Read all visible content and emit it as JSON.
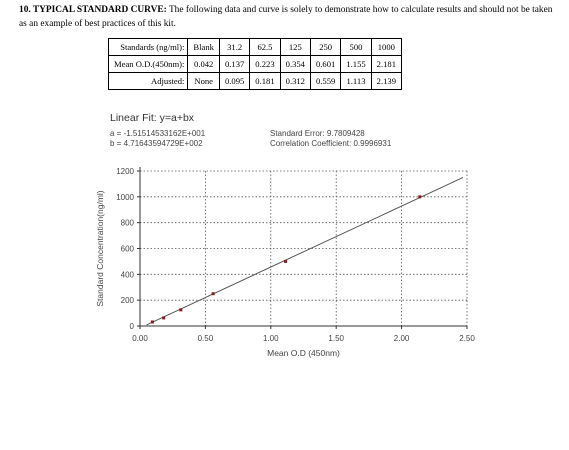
{
  "heading": {
    "bold": "10. TYPICAL STANDARD CURVE:",
    "text": " The following data and curve is solely to demonstrate how to calculate results and should not be taken as an example of best practices of this kit."
  },
  "table": {
    "rows": [
      {
        "label": "Standards (ng/ml):",
        "cells": [
          "Blank",
          "31.2",
          "62.5",
          "125",
          "250",
          "500",
          "1000"
        ]
      },
      {
        "label": "Mean O.D.(450nm):",
        "cells": [
          "0.042",
          "0.137",
          "0.223",
          "0.354",
          "0.601",
          "1.155",
          "2.181"
        ]
      },
      {
        "label": "Adjusted:",
        "cells": [
          "None",
          "0.095",
          "0.181",
          "0.312",
          "0.559",
          "1.113",
          "2.139"
        ]
      }
    ]
  },
  "fit": {
    "title": "Linear Fit:  y=a+bx",
    "a_line": "a = -1.51514533162E+001",
    "b_line": "b = 4.71643594729E+002",
    "se_line": "Standard Error: 9.7809428",
    "cc_line": "Correlation Coefficient: 0.9996931"
  },
  "chart_data": {
    "type": "scatter",
    "xlabel": "Mean O.D (450nm)",
    "ylabel": "Standard Concentration(ng/ml)",
    "xlim": [
      0,
      2.5
    ],
    "ylim": [
      0,
      1200
    ],
    "x_ticks": [
      0,
      0.5,
      1,
      1.5,
      2,
      2.5
    ],
    "x_tick_labels": [
      "0.00",
      "0.50",
      "1.00",
      "1.50",
      "2.00",
      "2.50"
    ],
    "y_ticks": [
      0,
      200,
      400,
      600,
      800,
      1000,
      1200
    ],
    "y_tick_labels": [
      "0",
      "200",
      "400",
      "600",
      "800",
      "1000",
      "1200"
    ],
    "grid": true,
    "points": {
      "x": [
        0.095,
        0.181,
        0.312,
        0.559,
        1.113,
        2.139
      ],
      "y": [
        31.2,
        62.5,
        125,
        250,
        500,
        1000
      ]
    },
    "fit_line": {
      "a": -15.1514533162,
      "b": 471.643594729,
      "x_range": [
        0.05,
        2.47
      ]
    },
    "colors": {
      "line": "#555555",
      "points": "#8b1a1a",
      "grid": "#555555"
    }
  }
}
